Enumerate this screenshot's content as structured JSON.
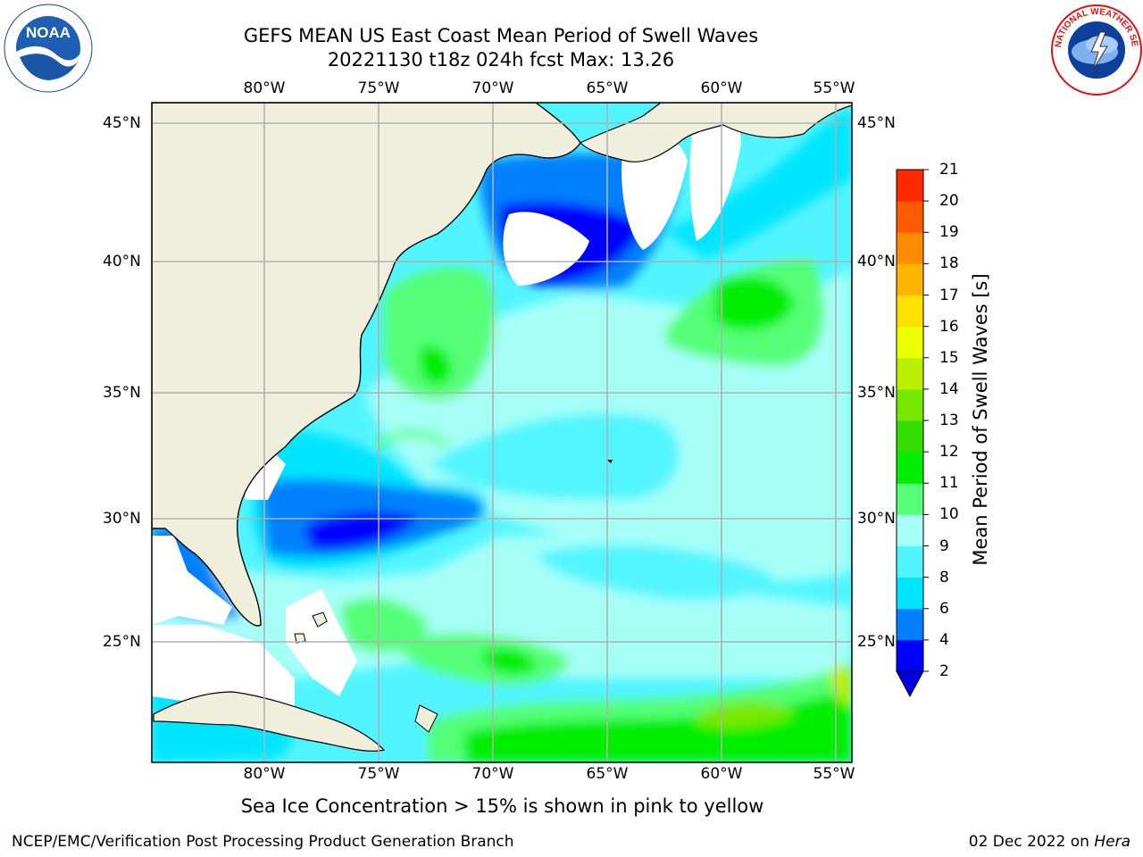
{
  "header": {
    "title_line1": "GEFS MEAN US East Coast Mean Period of Swell Waves",
    "title_line2": "20221130 t18z 024h fcst   Max: 13.26"
  },
  "logos": {
    "left": "NOAA",
    "right": "NATIONAL WEATHER SERVICE"
  },
  "map": {
    "lon_labels": [
      "80°W",
      "75°W",
      "70°W",
      "65°W",
      "60°W",
      "55°W"
    ],
    "lat_labels": [
      "45°N",
      "40°N",
      "35°N",
      "30°N",
      "25°N"
    ],
    "lon_range": [
      -85,
      -54
    ],
    "lat_range": [
      20.5,
      46.3
    ],
    "colors": {
      "land": "#efefdc",
      "gridline": "#b0b0b0",
      "no_data": "#ffffff"
    }
  },
  "colorbar": {
    "title": "Mean Period of Swell Waves [s]",
    "labels": [
      "2",
      "4",
      "6",
      "8",
      "9",
      "10",
      "11",
      "12",
      "13",
      "14",
      "15",
      "16",
      "17",
      "18",
      "19",
      "20",
      "21"
    ],
    "colors": [
      "#0000ff",
      "#0080ff",
      "#00e5ff",
      "#52f5ff",
      "#a6fff7",
      "#55ff77",
      "#00ee00",
      "#33dd00",
      "#77e800",
      "#bbf000",
      "#eeff00",
      "#ffe000",
      "#ffb400",
      "#ff8c00",
      "#ff5a00",
      "#ff2800"
    ],
    "extend_color": "#0000dd"
  },
  "footer": {
    "note": "Sea Ice Concentration > 15% is shown in pink to yellow",
    "left": "NCEP/EMC/Verification Post Processing Product Generation Branch",
    "date": "02 Dec 2022",
    "on": " on ",
    "host": "Hera"
  }
}
